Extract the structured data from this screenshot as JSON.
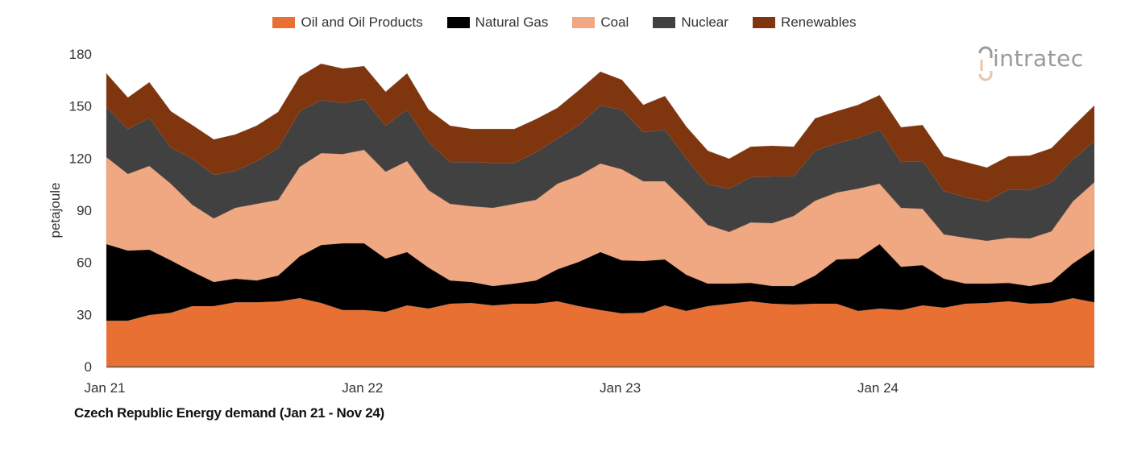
{
  "logo": {
    "text": "intratec",
    "icon": "intratec-logo-icon"
  },
  "caption": "Czech Republic Energy demand (Jan 21 - Nov 24)",
  "chart_data": {
    "type": "area",
    "stacked": true,
    "title": "Czech Republic Energy demand (Jan 21 - Nov 24)",
    "xlabel": "",
    "ylabel": "petajoule",
    "ylim": [
      0,
      180
    ],
    "yticks": [
      0,
      30,
      60,
      90,
      120,
      150,
      180
    ],
    "xtick_labels": [
      {
        "label": "Jan 21",
        "index": 0
      },
      {
        "label": "Jan 22",
        "index": 12
      },
      {
        "label": "Jan 23",
        "index": 24
      },
      {
        "label": "Jan 24",
        "index": 36
      }
    ],
    "grid": false,
    "legend_position": "top-center",
    "x": [
      "Jan 21",
      "Feb 21",
      "Mar 21",
      "Apr 21",
      "May 21",
      "Jun 21",
      "Jul 21",
      "Aug 21",
      "Sep 21",
      "Oct 21",
      "Nov 21",
      "Dec 21",
      "Jan 22",
      "Feb 22",
      "Mar 22",
      "Apr 22",
      "May 22",
      "Jun 22",
      "Jul 22",
      "Aug 22",
      "Sep 22",
      "Oct 22",
      "Nov 22",
      "Dec 22",
      "Jan 23",
      "Feb 23",
      "Mar 23",
      "Apr 23",
      "May 23",
      "Jun 23",
      "Jul 23",
      "Aug 23",
      "Sep 23",
      "Oct 23",
      "Nov 23",
      "Dec 23",
      "Jan 24",
      "Feb 24",
      "Mar 24",
      "Apr 24",
      "May 24",
      "Jun 24",
      "Jul 24",
      "Aug 24",
      "Sep 24",
      "Oct 24",
      "Nov 24"
    ],
    "series": [
      {
        "name": "Oil and Oil Products",
        "color": "#E87033",
        "values": [
          26.4,
          26.4,
          29.7,
          31.0,
          34.8,
          34.8,
          37.0,
          37.0,
          37.5,
          39.4,
          36.6,
          32.5,
          32.5,
          31.5,
          35.2,
          33.4,
          36.2,
          36.6,
          35.2,
          36.2,
          36.2,
          37.6,
          34.8,
          32.5,
          30.6,
          31.0,
          35.2,
          32.0,
          34.8,
          36.2,
          37.6,
          36.2,
          35.7,
          36.2,
          36.2,
          32.0,
          33.4,
          32.5,
          35.2,
          33.9,
          36.2,
          36.6,
          37.6,
          36.2,
          36.6,
          39.4,
          37.0
        ]
      },
      {
        "name": "Natural Gas",
        "color": "#000000",
        "values": [
          44.1,
          40.4,
          37.6,
          30.2,
          19.9,
          13.9,
          13.6,
          12.6,
          14.9,
          24.1,
          33.4,
          38.5,
          38.5,
          30.7,
          30.7,
          23.6,
          13.4,
          12.1,
          11.2,
          11.6,
          13.4,
          18.4,
          25.5,
          33.4,
          30.6,
          29.8,
          26.5,
          20.9,
          13.0,
          11.6,
          10.6,
          10.2,
          10.7,
          16.2,
          25.5,
          30.2,
          37.1,
          25.0,
          23.2,
          16.7,
          11.6,
          11.2,
          10.6,
          10.2,
          12.1,
          20.0,
          30.7
        ]
      },
      {
        "name": "Coal",
        "color": "#F0A882",
        "values": [
          50.1,
          44.1,
          48.2,
          44.1,
          38.5,
          36.6,
          40.8,
          44.1,
          43.6,
          51.5,
          52.9,
          51.4,
          53.8,
          50.0,
          52.4,
          44.6,
          44.1,
          43.6,
          45.0,
          45.9,
          46.4,
          49.3,
          49.6,
          51.0,
          52.4,
          45.9,
          45.0,
          41.7,
          33.8,
          29.7,
          34.8,
          36.2,
          40.3,
          43.1,
          38.5,
          40.3,
          34.8,
          33.9,
          32.5,
          25.5,
          26.4,
          24.6,
          26.0,
          27.4,
          29.2,
          35.7,
          38.5
        ]
      },
      {
        "name": "Nuclear",
        "color": "#414141",
        "values": [
          28.8,
          25.9,
          27.8,
          20.9,
          26.5,
          25.1,
          21.3,
          24.6,
          29.7,
          32.0,
          30.6,
          29.3,
          29.2,
          26.5,
          29.7,
          27.8,
          24.1,
          25.5,
          25.9,
          23.6,
          27.4,
          26.0,
          29.2,
          33.4,
          34.4,
          28.3,
          29.7,
          25.1,
          23.2,
          25.0,
          26.0,
          26.9,
          22.8,
          28.8,
          28.3,
          29.2,
          31.1,
          26.4,
          27.4,
          25.0,
          23.2,
          22.7,
          27.8,
          27.8,
          28.3,
          24.1,
          23.7
        ]
      },
      {
        "name": "Renewables",
        "color": "#7F360F",
        "values": [
          19.4,
          18.1,
          20.4,
          20.8,
          19.4,
          20.4,
          20.9,
          20.4,
          20.9,
          20.0,
          20.9,
          19.9,
          19.0,
          19.5,
          20.8,
          18.6,
          20.9,
          19.0,
          19.5,
          19.5,
          19.0,
          17.6,
          20.0,
          19.5,
          17.1,
          15.7,
          19.4,
          18.5,
          19.5,
          17.2,
          17.6,
          17.6,
          17.1,
          18.6,
          18.5,
          19.0,
          19.9,
          20.0,
          20.8,
          20.0,
          20.4,
          19.5,
          19.1,
          19.9,
          19.5,
          19.0,
          20.4
        ]
      }
    ]
  }
}
